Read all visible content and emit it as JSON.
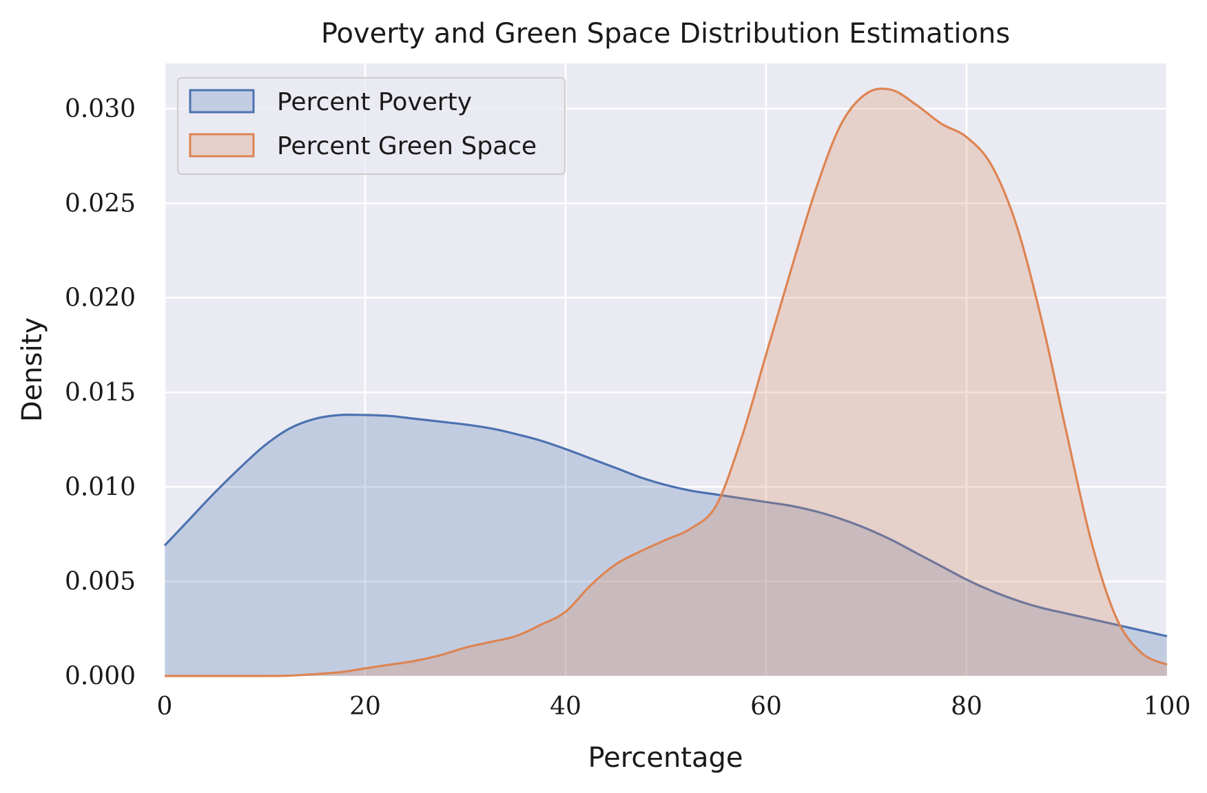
{
  "chart_data": {
    "type": "area",
    "title": "Poverty and Green Space Distribution Estimations",
    "xlabel": "Percentage",
    "ylabel": "Density",
    "xlim": [
      0,
      100
    ],
    "ylim": [
      0,
      0.0324
    ],
    "xticks": [
      0,
      20,
      40,
      60,
      80,
      100
    ],
    "xtick_labels": [
      "0",
      "20",
      "40",
      "60",
      "80",
      "100"
    ],
    "yticks": [
      0,
      0.005,
      0.01,
      0.015,
      0.02,
      0.025,
      0.03
    ],
    "ytick_labels": [
      "0.000",
      "0.005",
      "0.010",
      "0.015",
      "0.020",
      "0.025",
      "0.030"
    ],
    "grid": true,
    "legend_position": "top-left",
    "series": [
      {
        "name": "Percent Poverty",
        "color": "#4c72b0",
        "x": [
          0,
          2.5,
          5,
          7.5,
          10,
          12.5,
          15,
          17.5,
          20,
          22.5,
          25,
          27.5,
          30,
          32.5,
          35,
          37.5,
          40,
          42.5,
          45,
          47.5,
          50,
          52.5,
          55,
          57.5,
          60,
          62.5,
          65,
          67.5,
          70,
          72.5,
          75,
          77.5,
          80,
          82.5,
          85,
          87.5,
          90,
          92.5,
          95,
          97.5,
          100
        ],
        "y": [
          0.0069,
          0.0083,
          0.0097,
          0.011,
          0.0122,
          0.0131,
          0.0136,
          0.0138,
          0.0138,
          0.01375,
          0.0136,
          0.01345,
          0.0133,
          0.0131,
          0.0128,
          0.01245,
          0.012,
          0.0115,
          0.011,
          0.0105,
          0.0101,
          0.0098,
          0.0096,
          0.0094,
          0.0092,
          0.009,
          0.0087,
          0.0083,
          0.0078,
          0.0072,
          0.0065,
          0.0058,
          0.0051,
          0.0045,
          0.004,
          0.0036,
          0.0033,
          0.003,
          0.0027,
          0.0024,
          0.0021
        ]
      },
      {
        "name": "Percent Green Space",
        "color": "#dd8452",
        "x": [
          0,
          5,
          10,
          12.5,
          15,
          17.5,
          20,
          22.5,
          25,
          27.5,
          30,
          32.5,
          35,
          37.5,
          40,
          42.5,
          45,
          47.5,
          50,
          52.5,
          55,
          57.5,
          60,
          62.5,
          65,
          67.5,
          70,
          72.5,
          75,
          77.5,
          80,
          82.5,
          85,
          87.5,
          90,
          92.5,
          95,
          97.5,
          100
        ],
        "y": [
          0.0,
          0.0,
          0.0,
          2e-05,
          0.0001,
          0.0002,
          0.0004,
          0.0006,
          0.0008,
          0.0011,
          0.0015,
          0.0018,
          0.0021,
          0.0027,
          0.0034,
          0.0048,
          0.0059,
          0.0066,
          0.0072,
          0.0078,
          0.009,
          0.0125,
          0.017,
          0.0215,
          0.0258,
          0.0292,
          0.0308,
          0.031,
          0.0302,
          0.0292,
          0.0285,
          0.027,
          0.0238,
          0.0188,
          0.0128,
          0.007,
          0.003,
          0.0012,
          0.0006
        ]
      }
    ]
  }
}
